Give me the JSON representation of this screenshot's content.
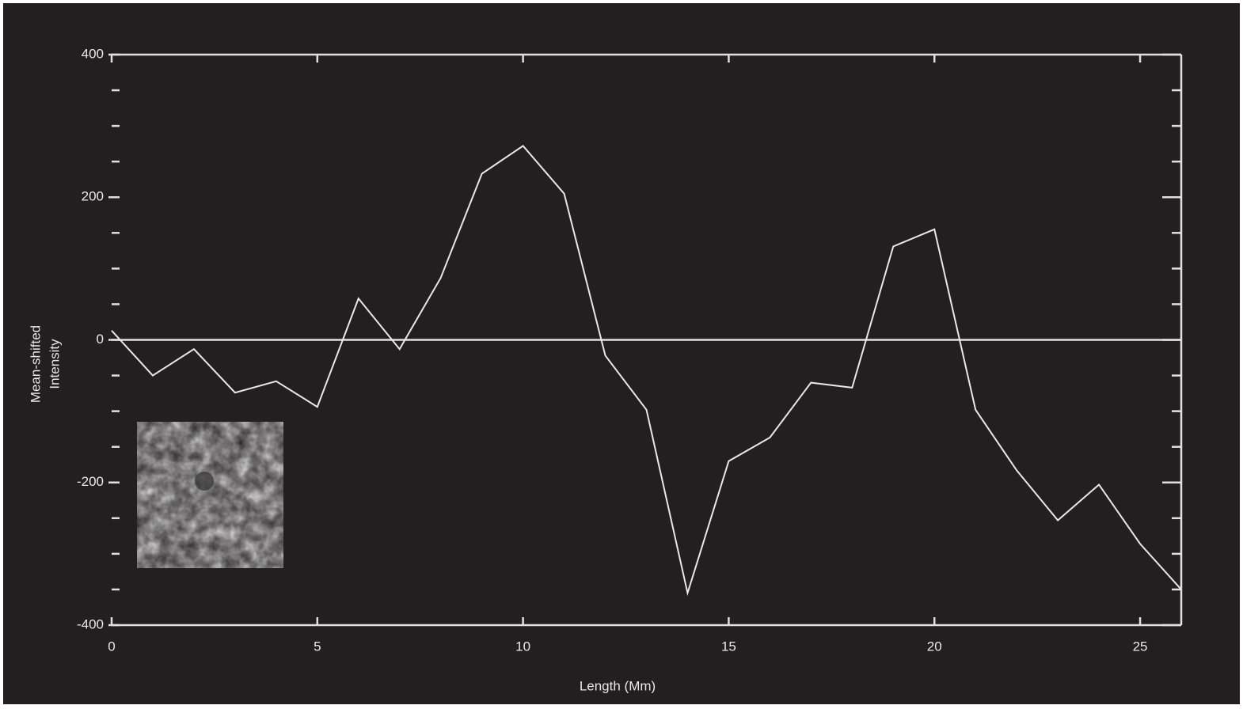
{
  "chart_data": {
    "type": "line",
    "x_label": "Length (Mm)",
    "y_label": [
      "Mean-shifted",
      "Intensity"
    ],
    "x": [
      0,
      1,
      2,
      3,
      4,
      5,
      6,
      7,
      8,
      9,
      10,
      11,
      12,
      13,
      14,
      15,
      16,
      17,
      18,
      19,
      20,
      21,
      22,
      23,
      24,
      25,
      26
    ],
    "series": [
      {
        "color": "#e8e8e8",
        "values": [
          13,
          -50,
          -13,
          -74,
          -58,
          -94,
          58,
          -13,
          87,
          233,
          272,
          205,
          -22,
          -98,
          -355,
          -170,
          -137,
          -60,
          -67,
          131,
          155,
          -98,
          -183,
          -253,
          -203,
          -286,
          -350
        ]
      }
    ],
    "xlim": [
      0,
      26
    ],
    "xticks": [
      0,
      5,
      10,
      15,
      20,
      25
    ],
    "ylim": [
      -400,
      400
    ],
    "yticks": [
      -400,
      -200,
      0,
      200,
      400
    ],
    "yminorticks": [
      -350,
      -300,
      -250,
      -150,
      -100,
      -50,
      50,
      100,
      150,
      250,
      300,
      350
    ],
    "reference_line": 0,
    "grid": false
  }
}
